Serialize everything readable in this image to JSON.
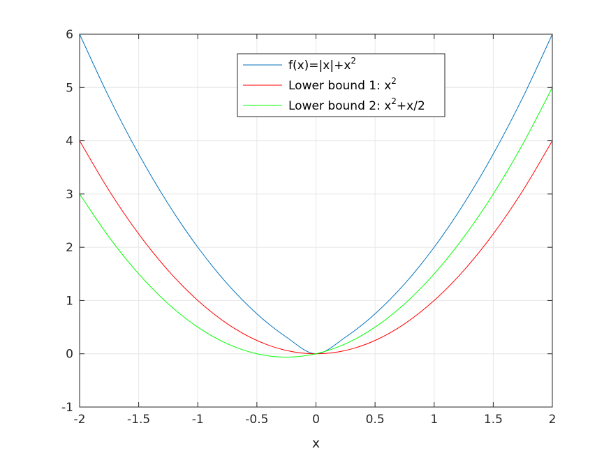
{
  "chart_data": {
    "type": "line",
    "title": "",
    "xlabel": "x",
    "ylabel": "",
    "xlim": [
      -2,
      2
    ],
    "ylim": [
      -1,
      6
    ],
    "xticks": [
      -2,
      -1.5,
      -1,
      -0.5,
      0,
      0.5,
      1,
      1.5,
      2
    ],
    "xtick_labels": [
      "-2",
      "-1.5",
      "-1",
      "-0.5",
      "0",
      "0.5",
      "1",
      "1.5",
      "2"
    ],
    "yticks": [
      -1,
      0,
      1,
      2,
      3,
      4,
      5,
      6
    ],
    "ytick_labels": [
      "-1",
      "0",
      "1",
      "2",
      "3",
      "4",
      "5",
      "6"
    ],
    "grid": true,
    "legend_position": "top-center",
    "x": [
      -2,
      -1.75,
      -1.5,
      -1.25,
      -1,
      -0.75,
      -0.5,
      -0.25,
      0,
      0.25,
      0.5,
      0.75,
      1,
      1.25,
      1.5,
      1.75,
      2
    ],
    "series": [
      {
        "name": "f(x)=|x|+x",
        "name_sup": "2",
        "color": "#0072bd",
        "values": [
          6,
          4.8125,
          3.75,
          2.8125,
          2,
          1.3125,
          0.75,
          0.3125,
          0,
          0.3125,
          0.75,
          1.3125,
          2,
          2.8125,
          3.75,
          4.8125,
          6
        ]
      },
      {
        "name": "Lower bound 1: x",
        "name_sup": "2",
        "color": "#ff0000",
        "values": [
          4,
          3.0625,
          2.25,
          1.5625,
          1,
          0.5625,
          0.25,
          0.0625,
          0,
          0.0625,
          0.25,
          0.5625,
          1,
          1.5625,
          2.25,
          3.0625,
          4
        ]
      },
      {
        "name": "Lower bound 2: x",
        "name_sup": "2",
        "name_after": "+x/2",
        "color": "#00ff00",
        "values": [
          3,
          2.1875,
          1.5,
          0.9375,
          0.5,
          0.1875,
          0,
          -0.0625,
          0,
          0.1875,
          0.5,
          0.9375,
          1.5,
          2.1875,
          3,
          3.9375,
          5
        ]
      }
    ]
  }
}
